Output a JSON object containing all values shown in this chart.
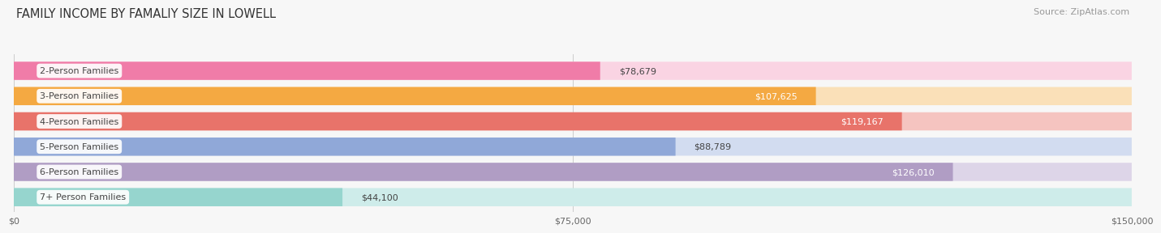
{
  "title": "FAMILY INCOME BY FAMALIY SIZE IN LOWELL",
  "source": "Source: ZipAtlas.com",
  "categories": [
    "2-Person Families",
    "3-Person Families",
    "4-Person Families",
    "5-Person Families",
    "6-Person Families",
    "7+ Person Families"
  ],
  "values": [
    78679,
    107625,
    119167,
    88789,
    126010,
    44100
  ],
  "bar_colors": [
    "#F07CA8",
    "#F4A942",
    "#E8736A",
    "#90A8D8",
    "#B09DC4",
    "#96D5CE"
  ],
  "bar_bg_colors": [
    "#FAD4E3",
    "#FAE0B8",
    "#F5C4C0",
    "#D2DCF0",
    "#DDD5E8",
    "#CEECEA"
  ],
  "label_in_bar": [
    false,
    true,
    true,
    false,
    true,
    false
  ],
  "value_label_white": [
    false,
    true,
    true,
    false,
    true,
    false
  ],
  "xmax": 150000,
  "xticks": [
    0,
    75000,
    150000
  ],
  "xtick_labels": [
    "$0",
    "$75,000",
    "$150,000"
  ],
  "background_color": "#f7f7f7",
  "title_fontsize": 10.5,
  "source_fontsize": 8,
  "cat_fontsize": 8,
  "value_fontsize": 8,
  "axis_fontsize": 8
}
